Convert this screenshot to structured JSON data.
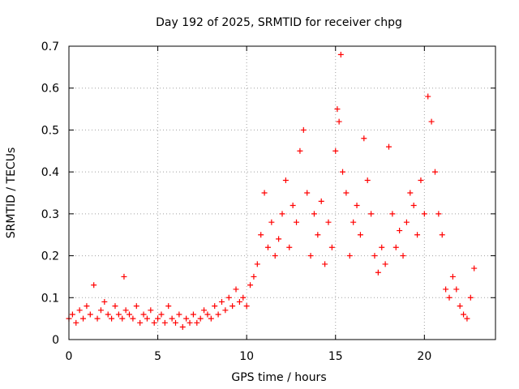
{
  "chart_data": {
    "type": "scatter",
    "title": "Day 192 of 2025, SRMTID for receiver chpg",
    "xlabel": "GPS time / hours",
    "ylabel": "SRMTID / TECUs",
    "xlim": [
      0,
      24
    ],
    "ylim": [
      0,
      0.7
    ],
    "xticks": [
      0,
      5,
      10,
      15,
      20
    ],
    "yticks": [
      0,
      0.1,
      0.2,
      0.3,
      0.4,
      0.5,
      0.6,
      0.7
    ],
    "grid": true,
    "marker": "+",
    "color": "#ff0000",
    "series": [
      {
        "name": "SRMTID",
        "x": [
          0.0,
          0.2,
          0.4,
          0.6,
          0.8,
          1.0,
          1.2,
          1.4,
          1.6,
          1.8,
          2.0,
          2.2,
          2.4,
          2.6,
          2.8,
          3.0,
          3.1,
          3.2,
          3.4,
          3.6,
          3.8,
          4.0,
          4.2,
          4.4,
          4.6,
          4.8,
          5.0,
          5.2,
          5.4,
          5.6,
          5.8,
          6.0,
          6.2,
          6.4,
          6.6,
          6.8,
          7.0,
          7.2,
          7.4,
          7.6,
          7.8,
          8.0,
          8.2,
          8.4,
          8.6,
          8.8,
          9.0,
          9.2,
          9.4,
          9.6,
          9.8,
          10.0,
          10.2,
          10.4,
          10.6,
          10.8,
          11.0,
          11.2,
          11.4,
          11.6,
          11.8,
          12.0,
          12.2,
          12.4,
          12.6,
          12.8,
          13.0,
          13.2,
          13.4,
          13.6,
          13.8,
          14.0,
          14.2,
          14.4,
          14.6,
          14.8,
          15.0,
          15.1,
          15.2,
          15.3,
          15.4,
          15.6,
          15.8,
          16.0,
          16.2,
          16.4,
          16.6,
          16.8,
          17.0,
          17.2,
          17.4,
          17.6,
          17.8,
          18.0,
          18.2,
          18.4,
          18.6,
          18.8,
          19.0,
          19.2,
          19.4,
          19.6,
          19.8,
          20.0,
          20.2,
          20.4,
          20.6,
          20.8,
          21.0,
          21.2,
          21.4,
          21.6,
          21.8,
          22.0,
          22.2,
          22.4,
          22.6,
          22.8
        ],
        "y": [
          0.05,
          0.06,
          0.04,
          0.07,
          0.05,
          0.08,
          0.06,
          0.13,
          0.05,
          0.07,
          0.09,
          0.06,
          0.05,
          0.08,
          0.06,
          0.05,
          0.15,
          0.07,
          0.06,
          0.05,
          0.08,
          0.04,
          0.06,
          0.05,
          0.07,
          0.04,
          0.05,
          0.06,
          0.04,
          0.08,
          0.05,
          0.04,
          0.06,
          0.03,
          0.05,
          0.04,
          0.06,
          0.04,
          0.05,
          0.07,
          0.06,
          0.05,
          0.08,
          0.06,
          0.09,
          0.07,
          0.1,
          0.08,
          0.12,
          0.09,
          0.1,
          0.08,
          0.13,
          0.15,
          0.18,
          0.25,
          0.35,
          0.22,
          0.28,
          0.2,
          0.24,
          0.3,
          0.38,
          0.22,
          0.32,
          0.28,
          0.45,
          0.5,
          0.35,
          0.2,
          0.3,
          0.25,
          0.33,
          0.18,
          0.28,
          0.22,
          0.45,
          0.55,
          0.52,
          0.68,
          0.4,
          0.35,
          0.2,
          0.28,
          0.32,
          0.25,
          0.48,
          0.38,
          0.3,
          0.2,
          0.16,
          0.22,
          0.18,
          0.46,
          0.3,
          0.22,
          0.26,
          0.2,
          0.28,
          0.35,
          0.32,
          0.25,
          0.38,
          0.3,
          0.58,
          0.52,
          0.4,
          0.3,
          0.25,
          0.12,
          0.1,
          0.15,
          0.12,
          0.08,
          0.06,
          0.05,
          0.1,
          0.17
        ]
      }
    ]
  }
}
